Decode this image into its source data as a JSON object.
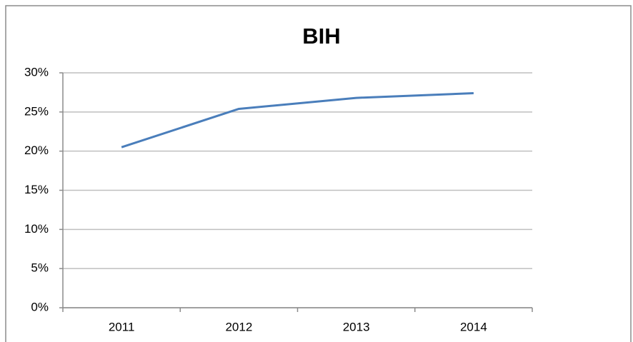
{
  "chart_data": {
    "type": "line",
    "title": "BIH",
    "categories": [
      "2011",
      "2012",
      "2013",
      "2014"
    ],
    "series": [
      {
        "name": "BIH",
        "color": "#4a7ebb",
        "values": [
          20.5,
          25.4,
          26.8,
          27.4
        ]
      }
    ],
    "ylim": [
      0,
      30
    ],
    "yticks": [
      {
        "value": 0,
        "label": "0%"
      },
      {
        "value": 5,
        "label": "5%"
      },
      {
        "value": 10,
        "label": "10%"
      },
      {
        "value": 15,
        "label": "15%"
      },
      {
        "value": 20,
        "label": "20%"
      },
      {
        "value": 25,
        "label": "25%"
      },
      {
        "value": 30,
        "label": "30%"
      }
    ],
    "grid": true
  }
}
